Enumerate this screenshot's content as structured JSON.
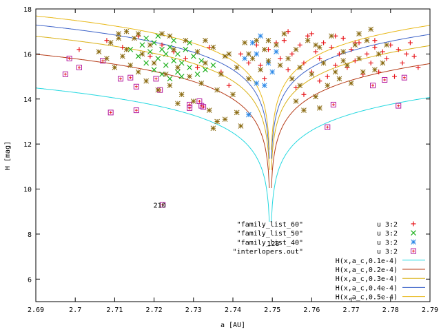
{
  "chart_data": {
    "type": "scatter",
    "title": "",
    "xlabel": "a [AU]",
    "ylabel": "H [mag]",
    "xlim": [
      2.69,
      2.79
    ],
    "ylim": [
      5,
      18
    ],
    "x_ticks": [
      "2.69",
      "2.7",
      "2.71",
      "2.72",
      "2.73",
      "2.74",
      "2.75",
      "2.76",
      "2.77",
      "2.78",
      "2.79"
    ],
    "y_ticks": [
      "6",
      "8",
      "10",
      "12",
      "14",
      "16",
      "18"
    ],
    "grid": false,
    "legend_position": "bottom-right",
    "legend": [
      {
        "label": "u 3:2",
        "marker": "plus",
        "color": "#e8161b"
      },
      {
        "label": "u 3:2",
        "marker": "cross",
        "color": "#22b222"
      },
      {
        "label": "u 3:2",
        "marker": "star",
        "color": "#2a88e8"
      },
      {
        "label": "u 3:2",
        "marker": "square",
        "color": "#b2169e"
      },
      {
        "label": "H(x,a_c,0.1e-4)",
        "marker": "line",
        "color": "#23d8e0"
      },
      {
        "label": "H(x,a_c,0.2e-4)",
        "marker": "line",
        "color": "#b53a16"
      },
      {
        "label": "H(x,a_c,0.3e-4)",
        "marker": "line",
        "color": "#d9b014"
      },
      {
        "label": "H(x,a_c,0.4e-4)",
        "marker": "line",
        "color": "#3c62c8"
      },
      {
        "label": "H(x,a_c,0.5e-4)",
        "marker": "line",
        "color": "#e8b818"
      }
    ],
    "file_labels": [
      "\"family_list_60\"",
      "\"family_list_50\"",
      "\"family_list_40\"",
      "\"interlopers.out\""
    ],
    "annotations": [
      {
        "text": "210",
        "x": 2.7214,
        "y": 9.3
      },
      {
        "text": "128",
        "x": 2.7502,
        "y": 7.6
      }
    ],
    "curves": {
      "center": 2.7495,
      "levels": [
        14.3,
        15.8,
        16.6,
        17.1,
        17.5
      ],
      "colors": [
        "#23d8e0",
        "#b53a16",
        "#d9b014",
        "#3c62c8",
        "#e8b818"
      ]
    },
    "series": [
      {
        "name": "family_list_60",
        "color": "#e8161b",
        "marker": "plus",
        "points": [
          [
            2.701,
            16.2
          ],
          [
            2.708,
            16.6
          ],
          [
            2.712,
            16.3
          ],
          [
            2.716,
            16.8
          ],
          [
            2.719,
            15.9
          ],
          [
            2.722,
            16.4
          ],
          [
            2.725,
            16.1
          ],
          [
            2.728,
            15.8
          ],
          [
            2.731,
            15.4
          ],
          [
            2.734,
            16.3
          ],
          [
            2.737,
            15.2
          ],
          [
            2.739,
            14.6
          ],
          [
            2.742,
            16.0
          ],
          [
            2.744,
            15.6
          ],
          [
            2.746,
            16.4
          ],
          [
            2.747,
            15.5
          ],
          [
            2.748,
            14.9
          ],
          [
            2.749,
            16.2
          ],
          [
            2.751,
            16.5
          ],
          [
            2.752,
            15.8
          ],
          [
            2.753,
            16.6
          ],
          [
            2.754,
            15.3
          ],
          [
            2.755,
            16.0
          ],
          [
            2.756,
            14.5
          ],
          [
            2.757,
            16.4
          ],
          [
            2.758,
            15.6
          ],
          [
            2.759,
            16.8
          ],
          [
            2.76,
            15.2
          ],
          [
            2.761,
            16.1
          ],
          [
            2.762,
            15.8
          ],
          [
            2.763,
            16.5
          ],
          [
            2.764,
            15.0
          ],
          [
            2.765,
            16.3
          ],
          [
            2.766,
            15.5
          ],
          [
            2.767,
            16.0
          ],
          [
            2.768,
            16.7
          ],
          [
            2.769,
            15.4
          ],
          [
            2.77,
            16.2
          ],
          [
            2.771,
            15.7
          ],
          [
            2.772,
            16.5
          ],
          [
            2.773,
            15.1
          ],
          [
            2.774,
            16.0
          ],
          [
            2.775,
            15.6
          ],
          [
            2.776,
            16.3
          ],
          [
            2.777,
            15.2
          ],
          [
            2.778,
            16.1
          ],
          [
            2.779,
            15.8
          ],
          [
            2.78,
            16.4
          ],
          [
            2.781,
            15.0
          ],
          [
            2.782,
            16.2
          ],
          [
            2.783,
            15.6
          ],
          [
            2.784,
            16.0
          ],
          [
            2.785,
            16.5
          ],
          [
            2.786,
            15.9
          ],
          [
            2.787,
            15.4
          ],
          [
            2.758,
            14.2
          ],
          [
            2.762,
            14.8
          ],
          [
            2.754,
            17.0
          ],
          [
            2.76,
            16.9
          ],
          [
            2.766,
            16.8
          ],
          [
            2.771,
            16.5
          ],
          [
            2.776,
            16.6
          ]
        ]
      },
      {
        "name": "family_list_50",
        "color": "#22b222",
        "marker": "cross",
        "points": [
          [
            2.714,
            16.2
          ],
          [
            2.716,
            15.9
          ],
          [
            2.717,
            16.4
          ],
          [
            2.718,
            15.6
          ],
          [
            2.719,
            16.1
          ],
          [
            2.72,
            15.3
          ],
          [
            2.72,
            16.5
          ],
          [
            2.721,
            15.8
          ],
          [
            2.722,
            16.2
          ],
          [
            2.722,
            15.1
          ],
          [
            2.723,
            16.0
          ],
          [
            2.723,
            15.5
          ],
          [
            2.724,
            16.3
          ],
          [
            2.725,
            15.7
          ],
          [
            2.725,
            16.6
          ],
          [
            2.726,
            15.2
          ],
          [
            2.726,
            16.0
          ],
          [
            2.727,
            15.6
          ],
          [
            2.728,
            16.2
          ],
          [
            2.729,
            15.4
          ],
          [
            2.73,
            15.9
          ],
          [
            2.731,
            15.1
          ],
          [
            2.732,
            15.7
          ],
          [
            2.733,
            15.3
          ],
          [
            2.735,
            15.5
          ],
          [
            2.718,
            16.7
          ],
          [
            2.721,
            16.8
          ],
          [
            2.724,
            14.9
          ],
          [
            2.727,
            15.0
          ],
          [
            2.729,
            16.5
          ]
        ]
      },
      {
        "name": "family_list_40",
        "color": "#2a88e8",
        "marker": "star",
        "points": [
          [
            2.745,
            16.5
          ],
          [
            2.747,
            16.8
          ],
          [
            2.746,
            16.0
          ],
          [
            2.749,
            15.6
          ],
          [
            2.75,
            15.2
          ],
          [
            2.746,
            14.7
          ],
          [
            2.743,
            15.8
          ],
          [
            2.748,
            14.6
          ],
          [
            2.751,
            16.1
          ],
          [
            2.744,
            13.3
          ]
        ]
      },
      {
        "name": "interlopers.out",
        "color": "#b2169e",
        "marker": "square",
        "points": [
          [
            2.6975,
            15.1
          ],
          [
            2.6985,
            15.8
          ],
          [
            2.701,
            15.4
          ],
          [
            2.707,
            15.7
          ],
          [
            2.709,
            13.4
          ],
          [
            2.7115,
            14.9
          ],
          [
            2.714,
            14.95
          ],
          [
            2.7155,
            13.5
          ],
          [
            2.7155,
            14.55
          ],
          [
            2.7205,
            14.9
          ],
          [
            2.7215,
            14.4
          ],
          [
            2.7222,
            9.3
          ],
          [
            2.729,
            13.75
          ],
          [
            2.729,
            13.6
          ],
          [
            2.7315,
            13.9
          ],
          [
            2.732,
            13.7
          ],
          [
            2.7325,
            13.65
          ],
          [
            2.764,
            12.75
          ],
          [
            2.7655,
            13.75
          ],
          [
            2.7755,
            14.6
          ],
          [
            2.7785,
            14.85
          ],
          [
            2.782,
            13.7
          ],
          [
            2.7835,
            14.95
          ]
        ]
      },
      {
        "name": "olive",
        "color": "#8a6a10",
        "marker": "star",
        "points": [
          [
            2.706,
            16.1
          ],
          [
            2.708,
            15.8
          ],
          [
            2.709,
            16.5
          ],
          [
            2.71,
            15.4
          ],
          [
            2.711,
            16.9
          ],
          [
            2.712,
            15.9
          ],
          [
            2.713,
            16.2
          ],
          [
            2.714,
            15.5
          ],
          [
            2.715,
            16.7
          ],
          [
            2.716,
            15.2
          ],
          [
            2.717,
            16.0
          ],
          [
            2.718,
            14.8
          ],
          [
            2.719,
            16.4
          ],
          [
            2.72,
            15.6
          ],
          [
            2.721,
            14.4
          ],
          [
            2.722,
            16.9
          ],
          [
            2.723,
            15.1
          ],
          [
            2.724,
            14.6
          ],
          [
            2.725,
            16.2
          ],
          [
            2.726,
            15.4
          ],
          [
            2.727,
            14.2
          ],
          [
            2.728,
            16.6
          ],
          [
            2.729,
            15.0
          ],
          [
            2.73,
            13.9
          ],
          [
            2.731,
            16.1
          ],
          [
            2.732,
            14.7
          ],
          [
            2.733,
            15.6
          ],
          [
            2.734,
            13.5
          ],
          [
            2.735,
            16.3
          ],
          [
            2.736,
            14.4
          ],
          [
            2.737,
            15.1
          ],
          [
            2.738,
            13.1
          ],
          [
            2.739,
            16.0
          ],
          [
            2.74,
            14.2
          ],
          [
            2.741,
            15.4
          ],
          [
            2.742,
            12.8
          ],
          [
            2.743,
            16.5
          ],
          [
            2.744,
            14.9
          ],
          [
            2.745,
            15.8
          ],
          [
            2.746,
            16.6
          ],
          [
            2.747,
            15.3
          ],
          [
            2.748,
            16.2
          ],
          [
            2.749,
            15.7
          ],
          [
            2.751,
            16.4
          ],
          [
            2.752,
            15.5
          ],
          [
            2.753,
            16.9
          ],
          [
            2.754,
            15.8
          ],
          [
            2.755,
            14.9
          ],
          [
            2.756,
            16.2
          ],
          [
            2.757,
            15.4
          ],
          [
            2.758,
            13.5
          ],
          [
            2.759,
            16.6
          ],
          [
            2.76,
            15.1
          ],
          [
            2.761,
            14.1
          ],
          [
            2.762,
            16.3
          ],
          [
            2.763,
            15.6
          ],
          [
            2.764,
            14.6
          ],
          [
            2.765,
            16.8
          ],
          [
            2.766,
            15.2
          ],
          [
            2.767,
            14.9
          ],
          [
            2.768,
            16.1
          ],
          [
            2.769,
            15.5
          ],
          [
            2.77,
            14.7
          ],
          [
            2.771,
            16.4
          ],
          [
            2.772,
            15.8
          ],
          [
            2.773,
            15.2
          ],
          [
            2.774,
            16.6
          ],
          [
            2.775,
            17.1
          ],
          [
            2.776,
            15.3
          ],
          [
            2.777,
            16.0
          ],
          [
            2.778,
            15.6
          ],
          [
            2.779,
            16.4
          ],
          [
            2.716,
            16.9
          ],
          [
            2.711,
            16.7
          ],
          [
            2.713,
            17.0
          ],
          [
            2.724,
            16.8
          ],
          [
            2.733,
            16.6
          ],
          [
            2.726,
            13.8
          ],
          [
            2.736,
            13.0
          ],
          [
            2.741,
            13.4
          ],
          [
            2.735,
            12.7
          ],
          [
            2.756,
            13.9
          ],
          [
            2.762,
            13.6
          ],
          [
            2.757,
            14.6
          ],
          [
            2.738,
            15.9
          ],
          [
            2.744,
            16.0
          ],
          [
            2.749,
            16.6
          ],
          [
            2.761,
            16.4
          ],
          [
            2.768,
            15.7
          ],
          [
            2.772,
            16.9
          ]
        ]
      }
    ]
  }
}
